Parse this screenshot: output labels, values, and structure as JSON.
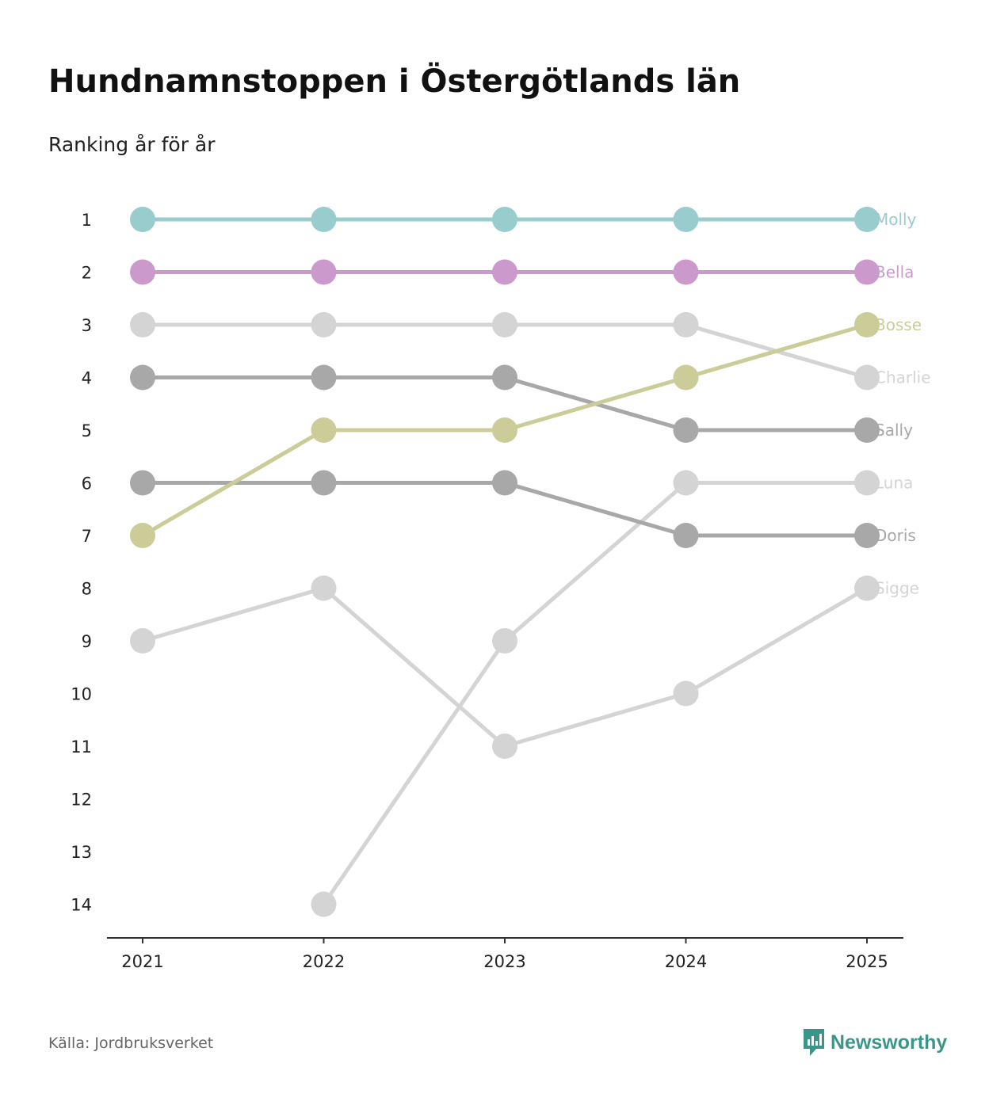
{
  "header": {
    "title": "Hundnamnstoppen i Östergötlands län",
    "subtitle": "Ranking år för år"
  },
  "footer": {
    "source": "Källa: Jordbruksverket",
    "brand": "Newsworthy",
    "brand_color": "#3c958b"
  },
  "chart_data": {
    "type": "line",
    "title": "Hundnamnstoppen i Östergötlands län",
    "subtitle": "Ranking år för år",
    "xlabel": "",
    "ylabel": "",
    "x": [
      "2021",
      "2022",
      "2023",
      "2024",
      "2025"
    ],
    "y_ticks": [
      "1",
      "2",
      "3",
      "4",
      "5",
      "6",
      "7",
      "8",
      "9",
      "10",
      "11",
      "12",
      "13",
      "14"
    ],
    "ylim": [
      1,
      14
    ],
    "y_inverted": true,
    "grid": false,
    "series": [
      {
        "name": "Sigge",
        "values": [
          9,
          8,
          11,
          10,
          8
        ],
        "color": "#d4d4d4"
      },
      {
        "name": "Luna",
        "values": [
          null,
          14,
          9,
          6,
          6
        ],
        "color": "#d4d4d4"
      },
      {
        "name": "Charlie",
        "values": [
          3,
          3,
          3,
          3,
          4
        ],
        "color": "#d4d4d4"
      },
      {
        "name": "Doris",
        "values": [
          6,
          6,
          6,
          7,
          7
        ],
        "color": "#a8a8a8"
      },
      {
        "name": "Sally",
        "values": [
          4,
          4,
          4,
          5,
          5
        ],
        "color": "#a8a8a8"
      },
      {
        "name": "Bosse",
        "values": [
          7,
          5,
          5,
          4,
          3
        ],
        "color": "#cbcc98"
      },
      {
        "name": "Bella",
        "values": [
          2,
          2,
          2,
          2,
          2
        ],
        "color": "#cc99cc"
      },
      {
        "name": "Molly",
        "values": [
          1,
          1,
          1,
          1,
          1
        ],
        "color": "#99cccc"
      }
    ]
  }
}
